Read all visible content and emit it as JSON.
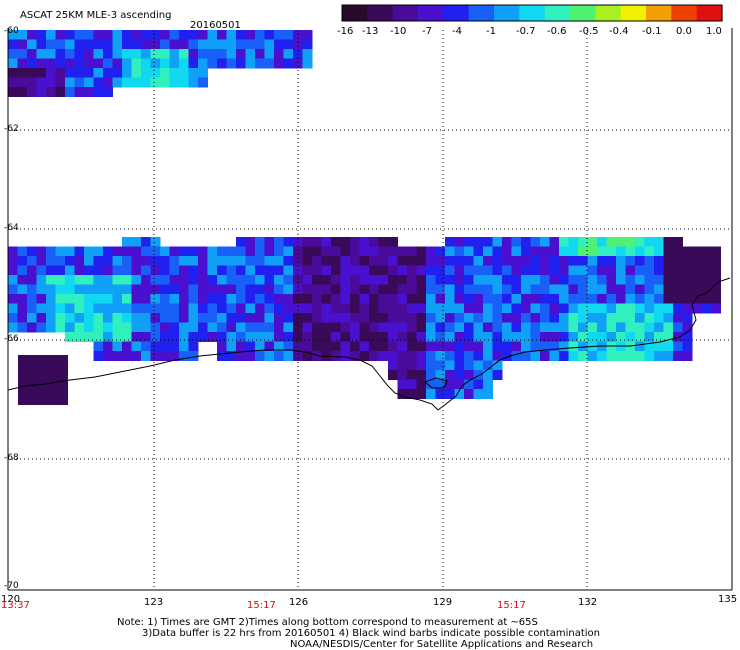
{
  "header": {
    "title": "ASCAT 25KM MLE-3 ascending",
    "date": "20160501"
  },
  "colorbar": {
    "labels": [
      "-16",
      "-13",
      "-10",
      "-7",
      "-4",
      "-1",
      "-0.7",
      "-0.6",
      "-0.5",
      "-0.4",
      "-0.1",
      "0.0",
      "1.0"
    ],
    "colors": [
      "#2a0a2a",
      "#3a0a5a",
      "#4a0a9a",
      "#4a10d0",
      "#2020f0",
      "#1860f8",
      "#10a0f8",
      "#10d8f0",
      "#30f0c0",
      "#50f070",
      "#a8f020",
      "#f0f000",
      "#f0a000",
      "#f04000",
      "#e01010"
    ]
  },
  "axes": {
    "lat_labels": [
      "-60",
      "-62",
      "-64",
      "-66",
      "-68",
      "-70"
    ],
    "lon_labels": [
      "120",
      "123",
      "126",
      "129",
      "132",
      "135"
    ],
    "time_labels": [
      "13:37",
      "15:17",
      "15:17"
    ]
  },
  "notes": {
    "line1": "Note: 1) Times are GMT 2)Times along bottom correspond to measurement at ~65S",
    "line2": "3)Data buffer is 22 hrs from 20160501 4) Black wind barbs indicate possible contamination",
    "line3": "NOAA/NESDIS/Center for Satellite Applications and Research"
  }
}
